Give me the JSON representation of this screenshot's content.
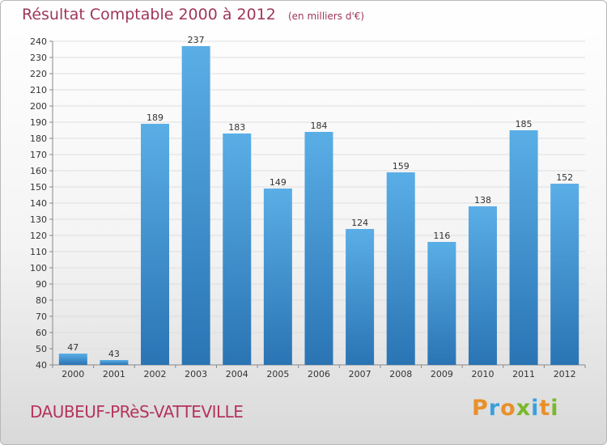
{
  "header": {
    "title": "Résultat Comptable 2000 à 2012",
    "subtitle": "(en milliers d'€)"
  },
  "footer": {
    "commune": "DAUBEUF-PRèS-VATTEVILLE",
    "brand": "Proxiti"
  },
  "chart_data": {
    "type": "bar",
    "title": "Résultat Comptable 2000 à 2012",
    "subtitle": "(en milliers d'€)",
    "xlabel": "",
    "ylabel": "",
    "categories": [
      "2000",
      "2001",
      "2002",
      "2003",
      "2004",
      "2005",
      "2006",
      "2007",
      "2008",
      "2009",
      "2010",
      "2011",
      "2012"
    ],
    "values": [
      47,
      43,
      189,
      237,
      183,
      149,
      184,
      124,
      159,
      116,
      138,
      185,
      152
    ],
    "ylim": [
      40,
      240
    ],
    "yticks": [
      40,
      50,
      60,
      70,
      80,
      90,
      100,
      110,
      120,
      130,
      140,
      150,
      160,
      170,
      180,
      190,
      200,
      210,
      220,
      230,
      240
    ],
    "grid": true,
    "legend": "none",
    "colors": {
      "bar_light": "#5aaee6",
      "bar_dark": "#2a74b4",
      "grid": "#dedede",
      "axis_text": "#333333",
      "title": "#a0365a"
    }
  },
  "brand_colors": [
    "#e8902a",
    "#3aa0dc",
    "#e8902a",
    "#7ab829",
    "#3aa0dc",
    "#e8902a",
    "#7ab829"
  ]
}
